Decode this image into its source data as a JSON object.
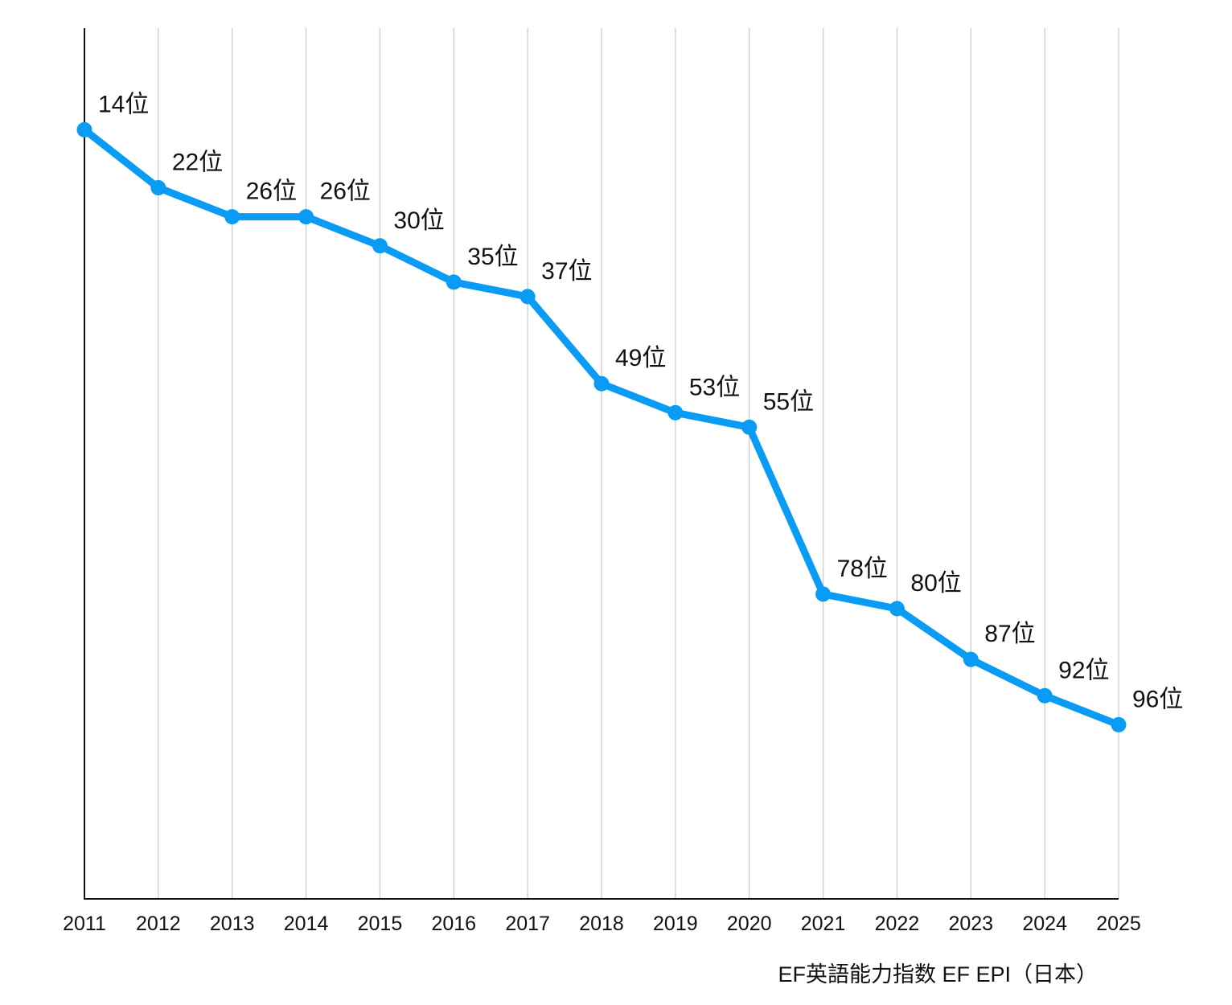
{
  "chart_data": {
    "type": "line",
    "title": "",
    "source_note": "EF英語能力指数 EF EPI（日本）",
    "xlabel": "",
    "ylabel": "",
    "y_inverted": true,
    "ylim": [
      0,
      120
    ],
    "grid": "vertical",
    "categories": [
      "2011",
      "2012",
      "2013",
      "2014",
      "2015",
      "2016",
      "2017",
      "2018",
      "2019",
      "2020",
      "2021",
      "2022",
      "2023",
      "2024",
      "2025"
    ],
    "series": [
      {
        "name": "日本",
        "values": [
          14,
          22,
          26,
          26,
          30,
          35,
          37,
          49,
          53,
          55,
          78,
          80,
          87,
          92,
          96
        ],
        "labels": [
          "14位",
          "22位",
          "26位",
          "26位",
          "30位",
          "35位",
          "37位",
          "49位",
          "53位",
          "55位",
          "78位",
          "80位",
          "87位",
          "92位",
          "96位"
        ]
      }
    ]
  },
  "colors": {
    "line": "#0a9bf5",
    "grid": "#c8c8c8",
    "axis": "#111111",
    "text": "#111111"
  }
}
